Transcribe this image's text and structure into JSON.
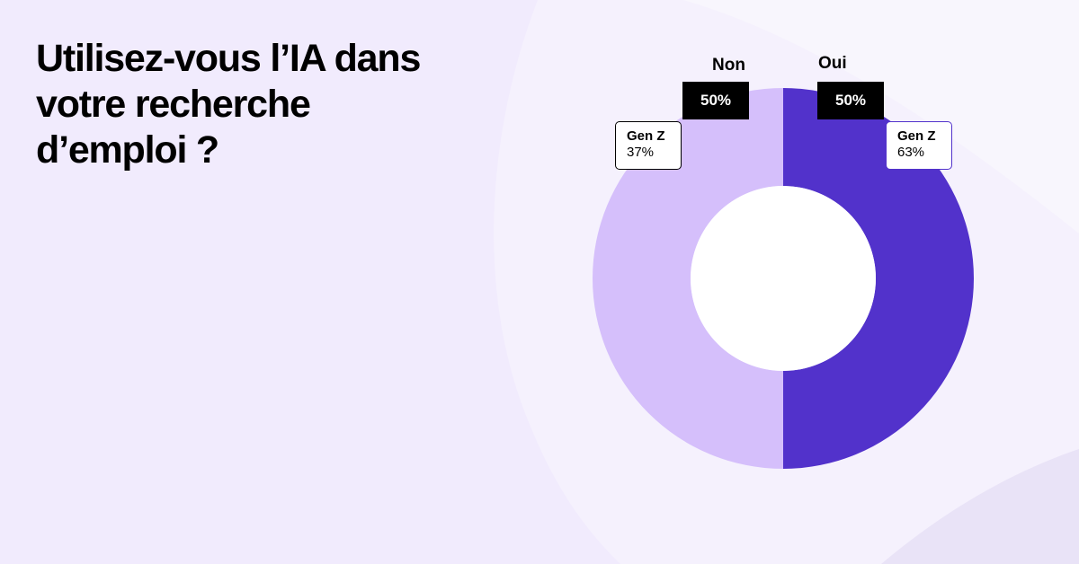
{
  "title": "Utilisez-vous l’IA dans votre recherche d’emploi ?",
  "colors": {
    "background": "#f1ebfd",
    "oui": "#5232cb",
    "non": "#d5bffb",
    "center": "#ffffff",
    "label_box": "#000000"
  },
  "chart_data": {
    "type": "pie",
    "title": "Utilisez-vous l’IA dans votre recherche d’emploi ?",
    "donut": true,
    "slices": [
      {
        "label": "Oui",
        "value": 50,
        "value_label": "50%",
        "color": "#5232cb",
        "sub_label": "Gen Z",
        "sub_value": 63,
        "sub_value_label": "63%"
      },
      {
        "label": "Non",
        "value": 50,
        "value_label": "50%",
        "color": "#d5bffb",
        "sub_label": "Gen Z",
        "sub_value": 37,
        "sub_value_label": "37%"
      }
    ]
  }
}
